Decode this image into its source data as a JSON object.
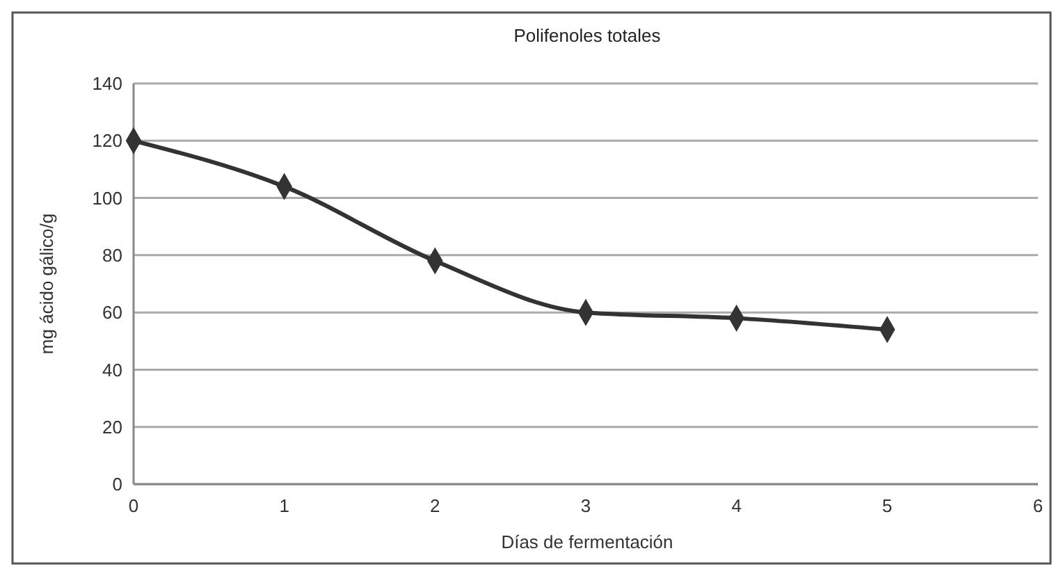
{
  "chart_data": {
    "type": "line",
    "title": "Polifenoles totales",
    "xlabel": "Días de fermentación",
    "ylabel": "mg ácido gálico/g",
    "x": [
      0,
      1,
      2,
      3,
      4,
      5
    ],
    "series": [
      {
        "color": "#333333",
        "values": [
          120,
          104,
          78,
          60,
          58,
          54
        ]
      }
    ],
    "xlim": [
      0,
      6
    ],
    "xticks": [
      0,
      1,
      2,
      3,
      4,
      5,
      6
    ],
    "ylim": [
      0,
      140
    ],
    "yticks": [
      0,
      20,
      40,
      60,
      80,
      100,
      120,
      140
    ],
    "grid": "y",
    "marker": "diamond",
    "line_style": "solid"
  }
}
